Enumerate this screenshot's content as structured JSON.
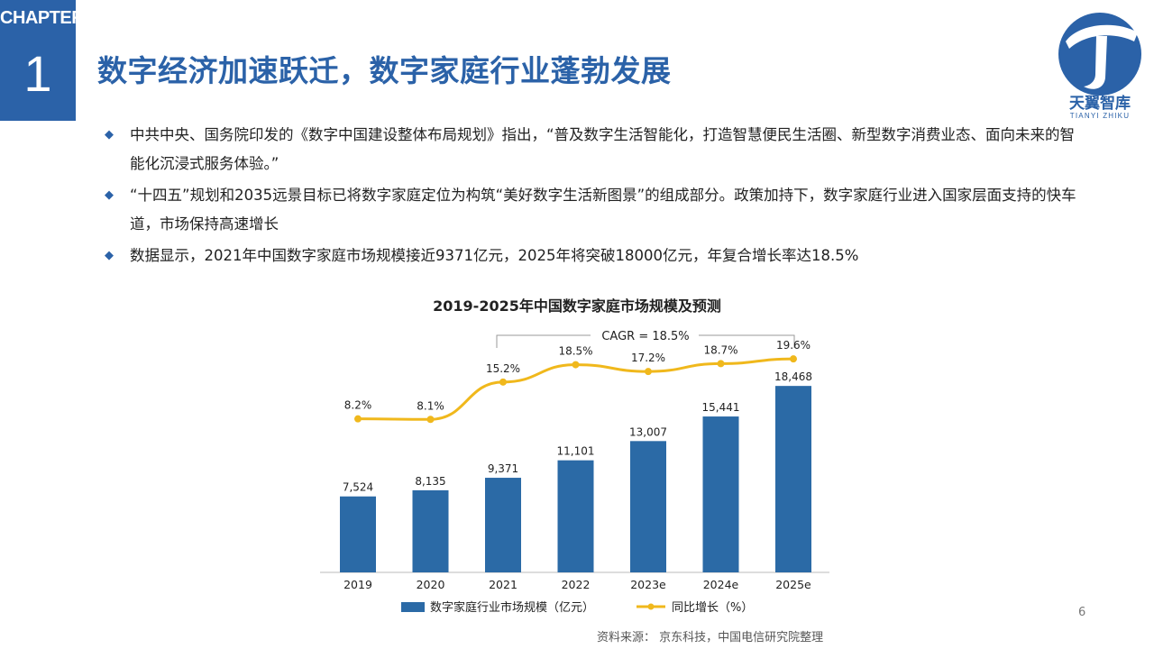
{
  "header": {
    "chapter_label": "CHAPTER",
    "chapter_number": "1",
    "title": "数字经济加速跃迁，数字家庭行业蓬勃发展"
  },
  "logo": {
    "name": "天翼智库",
    "subtitle": "TIANYI ZHIKU"
  },
  "bullets": [
    "中共中央、国务院印发的《数字中国建设整体布局规划》指出，“普及数字生活智能化，打造智慧便民生活圈、新型数字消费业态、面向未来的智能化沉浸式服务体验。”",
    "“十四五”规划和2035远景目标已将数字家庭定位为构筑“美好数字生活新图景”的组成部分。政策加持下，数字家庭行业进入国家层面支持的快车道，市场保持高速增长",
    "数据显示，2021年中国数字家庭市场规模接近9371亿元，2025年将突破18000亿元，年复合增长率达18.5%"
  ],
  "chart_data": {
    "type": "bar",
    "title": "2019-2025年中国数字家庭市场规模及预测",
    "categories": [
      "2019",
      "2020",
      "2021",
      "2022",
      "2023e",
      "2024e",
      "2025e"
    ],
    "series": [
      {
        "name": "数字家庭行业市场规模（亿元）",
        "type": "bar",
        "values": [
          7524,
          8135,
          9371,
          11101,
          13007,
          15441,
          18468
        ],
        "labels": [
          "7,524",
          "8,135",
          "9,371",
          "11,101",
          "13,007",
          "15,441",
          "18,468"
        ],
        "color": "#2b6aa6"
      },
      {
        "name": "同比增长（%）",
        "type": "line",
        "values": [
          8.2,
          8.1,
          15.2,
          18.5,
          17.2,
          18.7,
          19.6
        ],
        "labels": [
          "8.2%",
          "8.1%",
          "15.2%",
          "18.5%",
          "17.2%",
          "18.7%",
          "19.6%"
        ],
        "color": "#f0b81c"
      }
    ],
    "annotation": "CAGR = 18.5%",
    "annotation_span": [
      "2021",
      "2025e"
    ],
    "bar_axis_range": [
      0,
      25000
    ],
    "line_axis_range": [
      -21,
      27
    ],
    "grid": false,
    "legend_position": "bottom"
  },
  "page_number": "6",
  "source": "资料来源：  京东科技，中国电信研究院整理",
  "colors": {
    "accent": "#2b62a8",
    "bar": "#2b6aa6",
    "line": "#f0b81c"
  }
}
